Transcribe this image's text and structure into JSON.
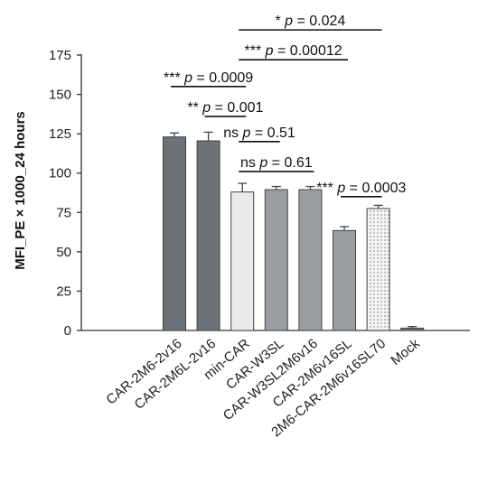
{
  "chart_data": {
    "type": "bar",
    "ylabel": "MFI_PE × 1000_24 hours",
    "ylim": [
      0,
      175
    ],
    "yticks": [
      0,
      25,
      50,
      75,
      100,
      125,
      150,
      175
    ],
    "categories": [
      "CAR-2M6-2v16",
      "CAR-2M6L-2v16",
      "min-CAR",
      "CAR-W3SL",
      "CAR-W3SL2M6v16",
      "CAR-2M6v16SL",
      "2M6-CAR-2M6v16SL70",
      "Mock"
    ],
    "values": [
      123,
      120.5,
      88,
      89.5,
      89.5,
      63.5,
      77.5,
      1.5
    ],
    "errors": [
      2.5,
      5.5,
      5.5,
      2,
      2,
      2.5,
      2,
      1
    ],
    "colors": [
      "#6d7278",
      "#6d7278",
      "#e9eaeb",
      "#9a9ea3",
      "#9a9ea3",
      "#9a9ea3",
      "#ececec",
      "#6d7278"
    ],
    "patterns": [
      "solid",
      "solid",
      "solid",
      "solid",
      "solid",
      "solid",
      "dots",
      "solid"
    ],
    "comparisons": [
      {
        "from": 0,
        "to": 2,
        "stars": "***",
        "p_label": "p",
        "p_value": " = 0.0009",
        "y": 155
      },
      {
        "from": 1,
        "to": 2,
        "stars": "**",
        "p_label": "p",
        "p_value": " = 0.001",
        "y": 136
      },
      {
        "from": 2,
        "to": 3,
        "stars": "ns",
        "p_label": "p",
        "p_value": " = 0.51",
        "y": 120
      },
      {
        "from": 2,
        "to": 4,
        "stars": "ns",
        "p_label": "p",
        "p_value": " = 0.61",
        "y": 101
      },
      {
        "from": 5,
        "to": 6,
        "stars": "***",
        "p_label": "p",
        "p_value": " = 0.0003",
        "y": 85
      },
      {
        "from": 2,
        "to": 5,
        "stars": "***",
        "p_label": "p",
        "p_value": " = 0.00012",
        "y": 172
      },
      {
        "from": 2,
        "to": 6,
        "stars": "*",
        "p_label": "p",
        "p_value": " = 0.024",
        "y": 191
      }
    ]
  }
}
